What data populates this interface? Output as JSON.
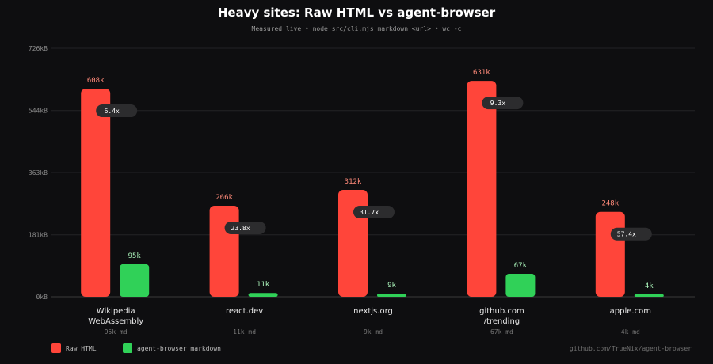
{
  "chart_data": {
    "type": "bar",
    "title": "Heavy sites: Raw HTML vs agent-browser",
    "subtitle": "Measured live  •  node src/cli.mjs markdown <url>  •  wc -c",
    "categories": [
      {
        "lines": [
          "Wikipedia",
          "WebAssembly"
        ],
        "sub": "95k md"
      },
      {
        "lines": [
          "react.dev"
        ],
        "sub": "11k md"
      },
      {
        "lines": [
          "nextjs.org"
        ],
        "sub": "9k md"
      },
      {
        "lines": [
          "github.com",
          "/trending"
        ],
        "sub": "67k md"
      },
      {
        "lines": [
          "apple.com"
        ],
        "sub": "4k md"
      }
    ],
    "series": [
      {
        "name": "Raw HTML",
        "color": "#ff453a",
        "values": [
          608,
          266,
          312,
          631,
          248
        ],
        "labels": [
          "608k",
          "266k",
          "312k",
          "631k",
          "248k"
        ]
      },
      {
        "name": "agent-browser markdown",
        "color": "#30d158",
        "values": [
          95,
          11,
          9,
          67,
          4
        ],
        "labels": [
          "95k",
          "11k",
          "9k",
          "67k",
          "4k"
        ]
      }
    ],
    "ratios": [
      "6.4x",
      "23.8x",
      "31.7x",
      "9.3x",
      "57.4x"
    ],
    "yticks": [
      0,
      181,
      363,
      544,
      726
    ],
    "ytick_labels": [
      "0kB",
      "181kB",
      "363kB",
      "544kB",
      "726kB"
    ],
    "ylim": [
      0,
      726
    ],
    "grid": true,
    "legend_position": "bottom-left",
    "credit": "github.com/TrueNix/agent-browser"
  }
}
